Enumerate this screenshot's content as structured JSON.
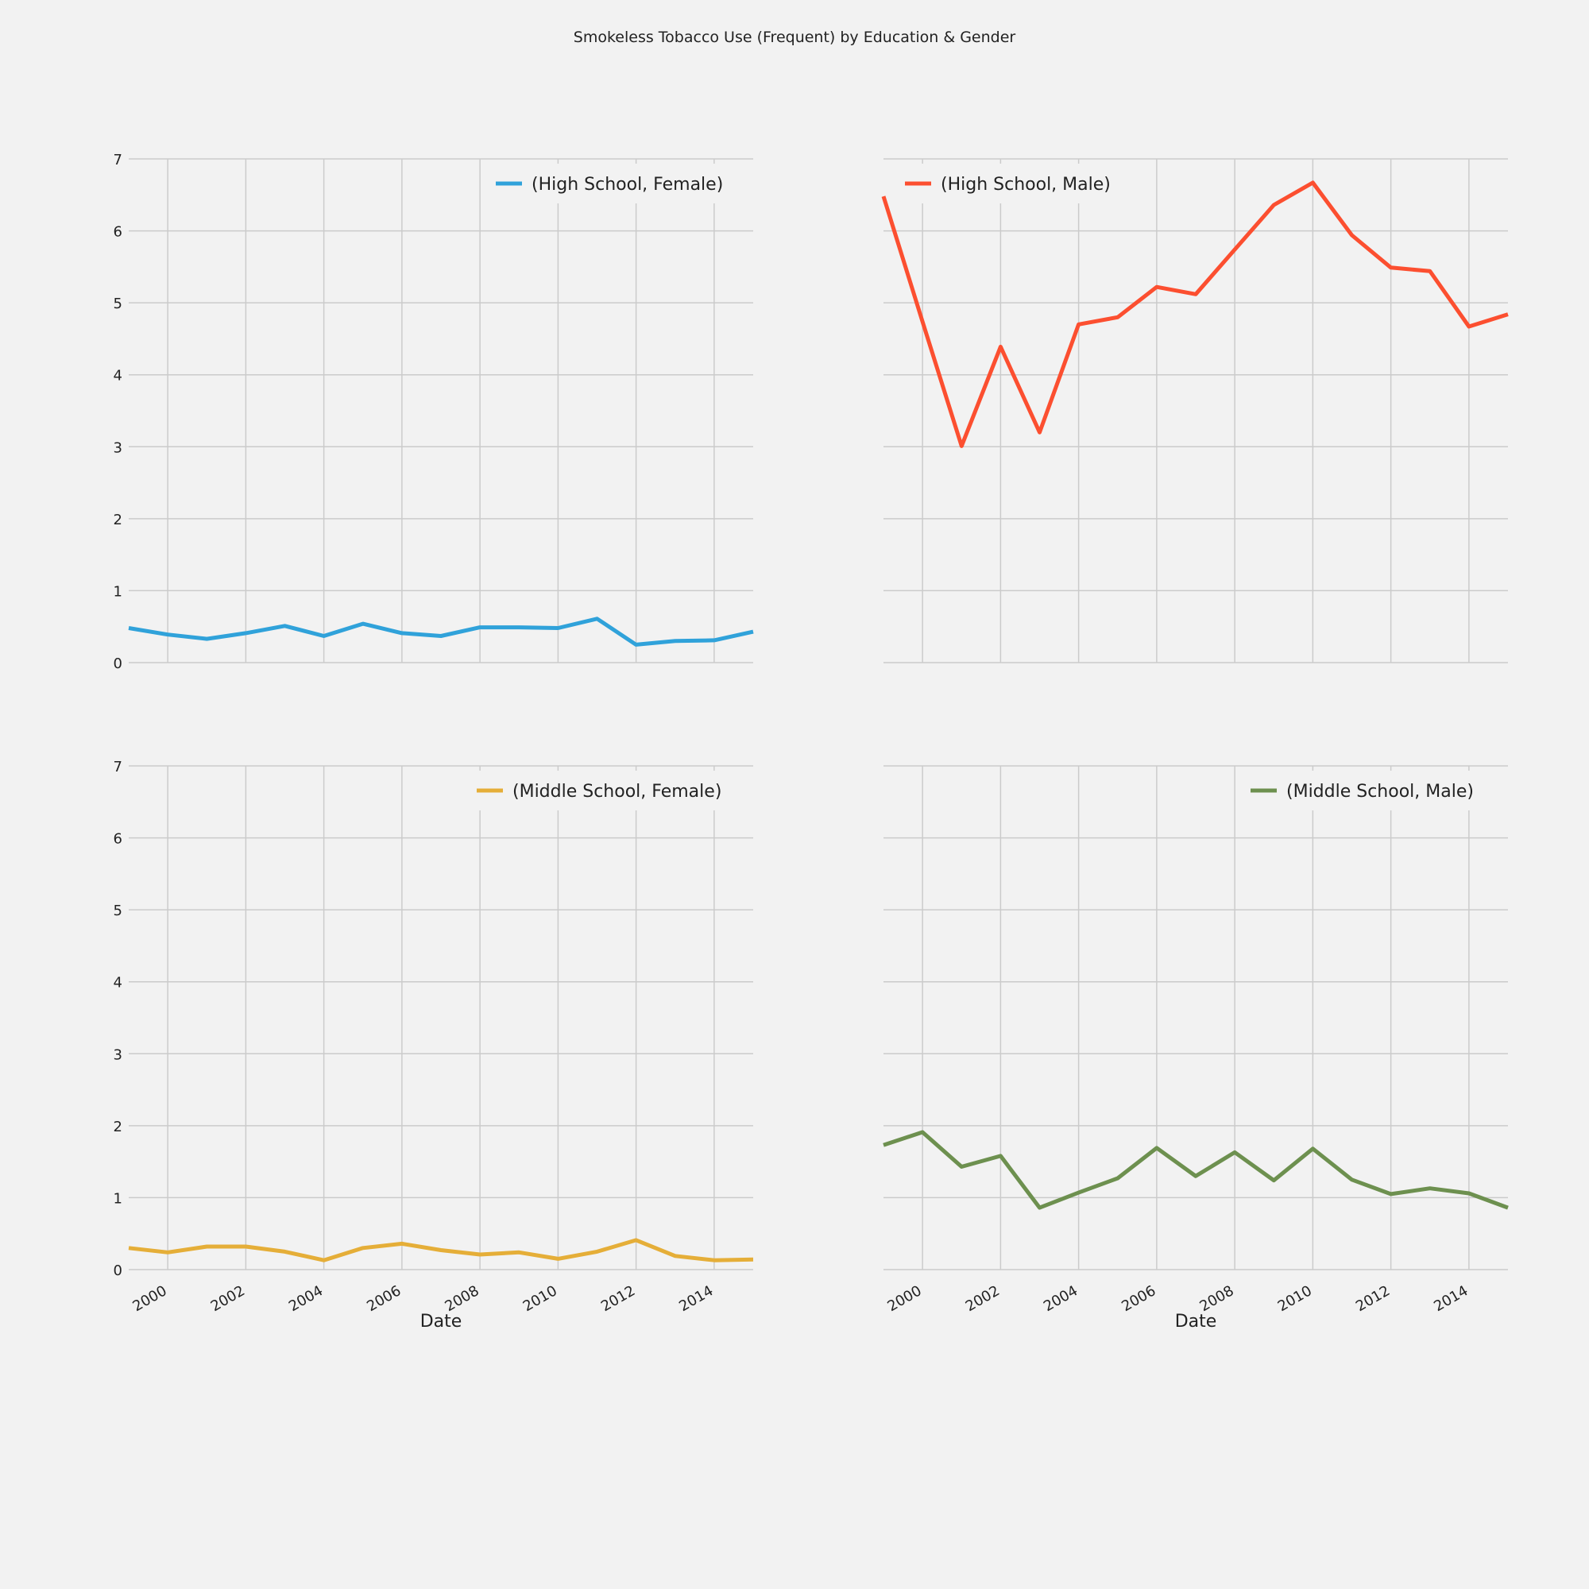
{
  "figure": {
    "title": "Smokeless Tobacco Use (Frequent) by Education & Gender"
  },
  "chart_data": [
    {
      "type": "line",
      "xlabel": "",
      "ylabel": "",
      "xlim": [
        1999,
        2015
      ],
      "ylim": [
        0,
        7
      ],
      "xticks": [
        "2000",
        "2002",
        "2004",
        "2006",
        "2008",
        "2010",
        "2012",
        "2014"
      ],
      "yticks": [
        "0",
        "1",
        "2",
        "3",
        "4",
        "5",
        "6",
        "7"
      ],
      "grid": true,
      "legend_position": "top-right",
      "color": "#30a2da",
      "series": [
        {
          "name": "(High School, Female)",
          "x": [
            1999,
            2000,
            2001,
            2002,
            2003,
            2004,
            2005,
            2006,
            2007,
            2008,
            2009,
            2010,
            2011,
            2012,
            2013,
            2014,
            2015
          ],
          "values": [
            0.48,
            0.39,
            0.33,
            0.41,
            0.51,
            0.37,
            0.54,
            0.41,
            0.37,
            0.49,
            0.49,
            0.48,
            0.61,
            0.25,
            0.3,
            0.31,
            0.43
          ]
        }
      ]
    },
    {
      "type": "line",
      "xlabel": "",
      "ylabel": "",
      "xlim": [
        1999,
        2015
      ],
      "ylim": [
        0,
        7
      ],
      "xticks": [
        "2000",
        "2002",
        "2004",
        "2006",
        "2008",
        "2010",
        "2012",
        "2014"
      ],
      "yticks": [
        "0",
        "1",
        "2",
        "3",
        "4",
        "5",
        "6",
        "7"
      ],
      "grid": true,
      "legend_position": "top-left",
      "color": "#fc4f30",
      "series": [
        {
          "name": "(High School, Male)",
          "x": [
            1999,
            2000,
            2001,
            2002,
            2003,
            2004,
            2005,
            2006,
            2007,
            2008,
            2009,
            2010,
            2011,
            2012,
            2013,
            2014,
            2015
          ],
          "values": [
            6.48,
            4.74,
            3.01,
            4.39,
            3.2,
            4.7,
            4.8,
            5.22,
            5.12,
            5.74,
            6.36,
            6.67,
            5.94,
            5.49,
            5.44,
            4.67,
            4.84
          ]
        }
      ]
    },
    {
      "type": "line",
      "xlabel": "Date",
      "ylabel": "",
      "xlim": [
        1999,
        2015
      ],
      "ylim": [
        0,
        7
      ],
      "xticks": [
        "2000",
        "2002",
        "2004",
        "2006",
        "2008",
        "2010",
        "2012",
        "2014"
      ],
      "yticks": [
        "0",
        "1",
        "2",
        "3",
        "4",
        "5",
        "6",
        "7"
      ],
      "grid": true,
      "legend_position": "top-right",
      "color": "#e5ae38",
      "series": [
        {
          "name": "(Middle School, Female)",
          "x": [
            1999,
            2000,
            2001,
            2002,
            2003,
            2004,
            2005,
            2006,
            2007,
            2008,
            2009,
            2010,
            2011,
            2012,
            2013,
            2014,
            2015
          ],
          "values": [
            0.3,
            0.24,
            0.32,
            0.32,
            0.25,
            0.13,
            0.3,
            0.36,
            0.27,
            0.21,
            0.24,
            0.15,
            0.25,
            0.41,
            0.19,
            0.13,
            0.14
          ]
        }
      ]
    },
    {
      "type": "line",
      "xlabel": "Date",
      "ylabel": "",
      "xlim": [
        1999,
        2015
      ],
      "ylim": [
        0,
        7
      ],
      "xticks": [
        "2000",
        "2002",
        "2004",
        "2006",
        "2008",
        "2010",
        "2012",
        "2014"
      ],
      "yticks": [
        "0",
        "1",
        "2",
        "3",
        "4",
        "5",
        "6",
        "7"
      ],
      "grid": true,
      "legend_position": "top-right",
      "color": "#6d904f",
      "series": [
        {
          "name": "(Middle School, Male)",
          "x": [
            1999,
            2000,
            2001,
            2002,
            2003,
            2004,
            2005,
            2006,
            2007,
            2008,
            2009,
            2010,
            2011,
            2012,
            2013,
            2014,
            2015
          ],
          "values": [
            1.73,
            1.91,
            1.43,
            1.58,
            0.86,
            1.07,
            1.27,
            1.69,
            1.3,
            1.63,
            1.24,
            1.68,
            1.25,
            1.05,
            1.13,
            1.06,
            0.86
          ]
        }
      ]
    }
  ]
}
